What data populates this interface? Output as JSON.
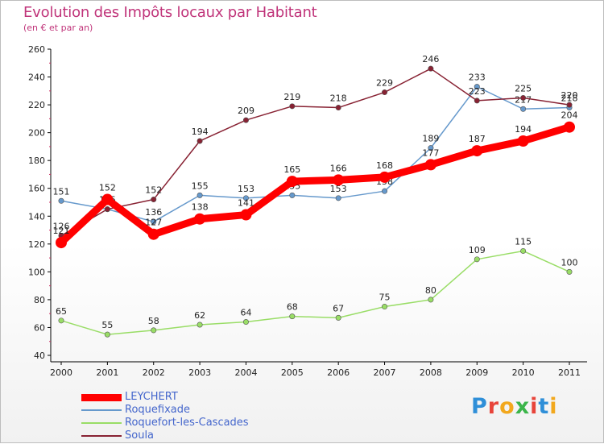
{
  "header": {
    "title": "Evolution des Impôts locaux par Habitant",
    "subtitle": "(en € et par an)"
  },
  "logo": {
    "text": "Proxiti",
    "letters": [
      "P",
      "r",
      "o",
      "x",
      "i",
      "t",
      "i"
    ]
  },
  "chart_data": {
    "type": "line",
    "x": [
      "2000",
      "2001",
      "2002",
      "2003",
      "2004",
      "2005",
      "2006",
      "2007",
      "2008",
      "2009",
      "2010",
      "2011"
    ],
    "ylim": [
      40,
      260
    ],
    "yticks": [
      40,
      60,
      80,
      100,
      120,
      140,
      160,
      180,
      200,
      220,
      240,
      260
    ],
    "grid": false,
    "legend_position": "bottom-left",
    "series": [
      {
        "name": "LEYCHERT",
        "color": "#ff0000",
        "values": [
          121,
          152,
          127,
          138,
          141,
          165,
          166,
          168,
          177,
          187,
          194,
          204
        ],
        "labels": [
          "121",
          "152",
          "127",
          "138",
          "141",
          "165",
          "166",
          "168",
          "177",
          "187",
          "194",
          "204"
        ]
      },
      {
        "name": "Roquefixade",
        "color": "#6699cc",
        "values": [
          151,
          145,
          136,
          155,
          153,
          155,
          153,
          158,
          189,
          233,
          217,
          218
        ],
        "labels": [
          "151",
          "",
          "136",
          "155",
          "153",
          "155",
          "153",
          "158",
          "189",
          "233",
          "217",
          "218"
        ]
      },
      {
        "name": "Roquefort-les-Cascades",
        "color": "#99dd66",
        "values": [
          65,
          55,
          58,
          62,
          64,
          68,
          67,
          75,
          80,
          109,
          115,
          100
        ],
        "labels": [
          "65",
          "55",
          "58",
          "62",
          "64",
          "68",
          "67",
          "75",
          "80",
          "109",
          "115",
          "100"
        ]
      },
      {
        "name": "Soula",
        "color": "#882233",
        "values": [
          126,
          145,
          152,
          194,
          209,
          219,
          218,
          229,
          246,
          223,
          225,
          220
        ],
        "labels": [
          "126",
          "145",
          "152",
          "194",
          "209",
          "219",
          "218",
          "229",
          "246",
          "223",
          "225",
          "220"
        ]
      }
    ]
  }
}
